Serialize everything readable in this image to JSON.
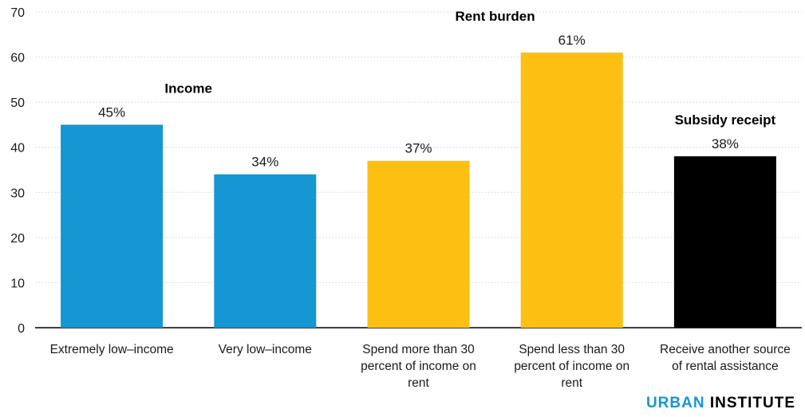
{
  "chart_data": {
    "type": "bar",
    "categories": [
      "Extremely low-income",
      "Very low-income",
      "Spend more than 30 percent of income on rent",
      "Spend less than 30 percent of income on rent",
      "Receive another source of rental assistance"
    ],
    "category_lines": [
      [
        "Extremely low–income"
      ],
      [
        "Very low–income"
      ],
      [
        "Spend more than 30",
        "percent of income on",
        "rent"
      ],
      [
        "Spend less than 30",
        "percent of income on",
        "rent"
      ],
      [
        "Receive another source",
        "of rental assistance"
      ]
    ],
    "values": [
      45,
      34,
      37,
      61,
      38
    ],
    "value_labels": [
      "45%",
      "34%",
      "37%",
      "61%",
      "38%"
    ],
    "bar_colors": [
      "#1696d2",
      "#1696d2",
      "#fdbf11",
      "#fdbf11",
      "#000000"
    ],
    "groups": [
      {
        "label": "Income",
        "bars": [
          0,
          1
        ]
      },
      {
        "label": "Rent burden",
        "bars": [
          2,
          3
        ]
      },
      {
        "label": "Subsidy receipt",
        "bars": [
          4
        ]
      }
    ],
    "yticks": [
      0,
      10,
      20,
      30,
      40,
      50,
      60,
      70
    ],
    "ylim": [
      0,
      70
    ],
    "grid": true,
    "title": "",
    "xlabel": "",
    "ylabel": ""
  },
  "branding": {
    "part1": "URBAN",
    "part2": "INSTITUTE"
  }
}
